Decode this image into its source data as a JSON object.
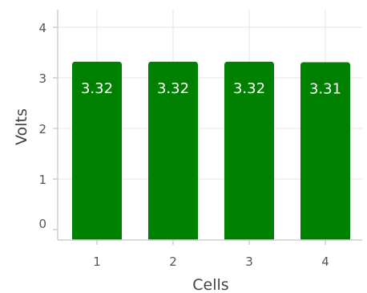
{
  "chart_data": {
    "type": "bar",
    "title": "",
    "xlabel": "Cells",
    "ylabel": "Volts",
    "categories": [
      "1",
      "2",
      "3",
      "4"
    ],
    "values": [
      3.32,
      3.32,
      3.32,
      3.31
    ],
    "data_labels": [
      "3.32",
      "3.32",
      "3.32",
      "3.31"
    ],
    "ylim": [
      0,
      4.5
    ],
    "yticks": [
      "0",
      "1",
      "2",
      "3",
      "4"
    ],
    "bar_color": "#008000",
    "grid": true,
    "legend": "none"
  }
}
